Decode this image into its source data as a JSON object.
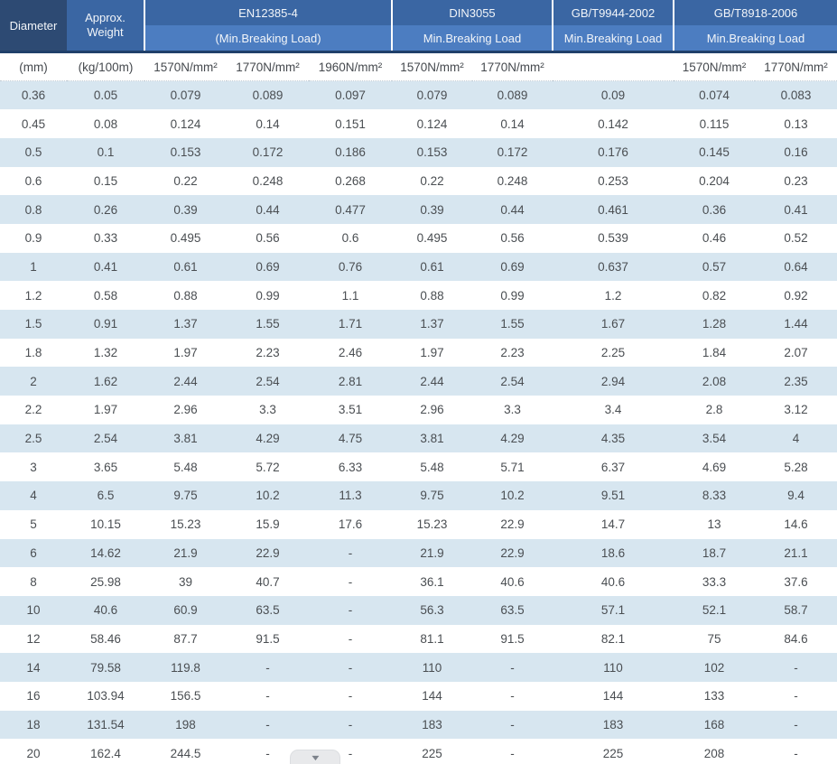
{
  "colors": {
    "header_dark": "#2d4a73",
    "header_medium": "#3a66a3",
    "header_light": "#4c7dc1",
    "header_border": "#20406a",
    "row_stripe": "#d7e6f0"
  },
  "table": {
    "columns": {
      "diameter": {
        "title": "Diameter",
        "unit": "(mm)"
      },
      "weight": {
        "title": "Approx. Weight",
        "unit": "(kg/100m)"
      }
    },
    "groups": [
      {
        "name": "EN12385-4",
        "sub": "(Min.Breaking Load)"
      },
      {
        "name": "DIN3055",
        "sub": "Min.Breaking Load"
      },
      {
        "name": "GB/T9944-2002",
        "sub": "Min.Breaking Load"
      },
      {
        "name": "GB/T8918-2006",
        "sub": "Min.Breaking Load"
      }
    ],
    "units": [
      "(mm)",
      "(kg/100m)",
      "1570N/mm²",
      "1770N/mm²",
      "1960N/mm²",
      "1570N/mm²",
      "1770N/mm²",
      "",
      "1570N/mm²",
      "1770N/mm²"
    ],
    "rows": [
      [
        "0.36",
        "0.05",
        "0.079",
        "0.089",
        "0.097",
        "0.079",
        "0.089",
        "0.09",
        "0.074",
        "0.083"
      ],
      [
        "0.45",
        "0.08",
        "0.124",
        "0.14",
        "0.151",
        "0.124",
        "0.14",
        "0.142",
        "0.115",
        "0.13"
      ],
      [
        "0.5",
        "0.1",
        "0.153",
        "0.172",
        "0.186",
        "0.153",
        "0.172",
        "0.176",
        "0.145",
        "0.16"
      ],
      [
        "0.6",
        "0.15",
        "0.22",
        "0.248",
        "0.268",
        "0.22",
        "0.248",
        "0.253",
        "0.204",
        "0.23"
      ],
      [
        "0.8",
        "0.26",
        "0.39",
        "0.44",
        "0.477",
        "0.39",
        "0.44",
        "0.461",
        "0.36",
        "0.41"
      ],
      [
        "0.9",
        "0.33",
        "0.495",
        "0.56",
        "0.6",
        "0.495",
        "0.56",
        "0.539",
        "0.46",
        "0.52"
      ],
      [
        "1",
        "0.41",
        "0.61",
        "0.69",
        "0.76",
        "0.61",
        "0.69",
        "0.637",
        "0.57",
        "0.64"
      ],
      [
        "1.2",
        "0.58",
        "0.88",
        "0.99",
        "1.1",
        "0.88",
        "0.99",
        "1.2",
        "0.82",
        "0.92"
      ],
      [
        "1.5",
        "0.91",
        "1.37",
        "1.55",
        "1.71",
        "1.37",
        "1.55",
        "1.67",
        "1.28",
        "1.44"
      ],
      [
        "1.8",
        "1.32",
        "1.97",
        "2.23",
        "2.46",
        "1.97",
        "2.23",
        "2.25",
        "1.84",
        "2.07"
      ],
      [
        "2",
        "1.62",
        "2.44",
        "2.54",
        "2.81",
        "2.44",
        "2.54",
        "2.94",
        "2.08",
        "2.35"
      ],
      [
        "2.2",
        "1.97",
        "2.96",
        "3.3",
        "3.51",
        "2.96",
        "3.3",
        "3.4",
        "2.8",
        "3.12"
      ],
      [
        "2.5",
        "2.54",
        "3.81",
        "4.29",
        "4.75",
        "3.81",
        "4.29",
        "4.35",
        "3.54",
        "4"
      ],
      [
        "3",
        "3.65",
        "5.48",
        "5.72",
        "6.33",
        "5.48",
        "5.71",
        "6.37",
        "4.69",
        "5.28"
      ],
      [
        "4",
        "6.5",
        "9.75",
        "10.2",
        "11.3",
        "9.75",
        "10.2",
        "9.51",
        "8.33",
        "9.4"
      ],
      [
        "5",
        "10.15",
        "15.23",
        "15.9",
        "17.6",
        "15.23",
        "22.9",
        "14.7",
        "13",
        "14.6"
      ],
      [
        "6",
        "14.62",
        "21.9",
        "22.9",
        "-",
        "21.9",
        "22.9",
        "18.6",
        "18.7",
        "21.1"
      ],
      [
        "8",
        "25.98",
        "39",
        "40.7",
        "-",
        "36.1",
        "40.6",
        "40.6",
        "33.3",
        "37.6"
      ],
      [
        "10",
        "40.6",
        "60.9",
        "63.5",
        "-",
        "56.3",
        "63.5",
        "57.1",
        "52.1",
        "58.7"
      ],
      [
        "12",
        "58.46",
        "87.7",
        "91.5",
        "-",
        "81.1",
        "91.5",
        "82.1",
        "75",
        "84.6"
      ],
      [
        "14",
        "79.58",
        "119.8",
        "-",
        "-",
        "110",
        "-",
        "110",
        "102",
        "-"
      ],
      [
        "16",
        "103.94",
        "156.5",
        "-",
        "-",
        "144",
        "-",
        "144",
        "133",
        "-"
      ],
      [
        "18",
        "131.54",
        "198",
        "-",
        "-",
        "183",
        "-",
        "183",
        "168",
        "-"
      ],
      [
        "20",
        "162.4",
        "244.5",
        "-",
        "-",
        "225",
        "-",
        "225",
        "208",
        "-"
      ]
    ]
  },
  "footer": {
    "arrow_glyph": "▼"
  }
}
